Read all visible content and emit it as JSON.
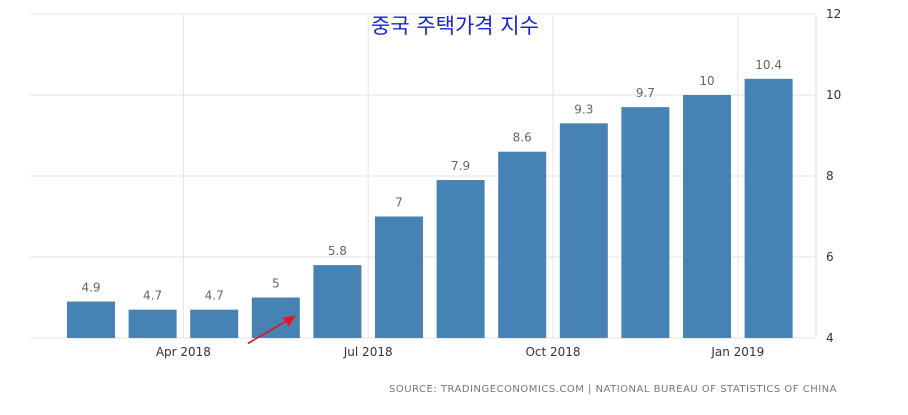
{
  "chart_data": {
    "type": "bar",
    "title": "중국 주택가격 지수",
    "source": "SOURCE: TRADINGECONOMICS.COM | NATIONAL BUREAU OF STATISTICS OF CHINA",
    "categories": [
      "2018-02",
      "2018-03",
      "2018-04",
      "2018-05",
      "2018-06",
      "2018-07",
      "2018-08",
      "2018-09",
      "2018-10",
      "2018-11",
      "2018-12",
      "2019-01"
    ],
    "values": [
      4.9,
      4.7,
      4.7,
      5,
      5.8,
      7,
      7.9,
      8.6,
      9.3,
      9.7,
      10,
      10.4
    ],
    "data_labels": [
      "4.9",
      "4.7",
      "4.7",
      "5",
      "5.8",
      "7",
      "7.9",
      "8.6",
      "9.3",
      "9.7",
      "10",
      "10.4"
    ],
    "xtick_labels": [
      {
        "category": "2018-03",
        "label": "Apr 2018"
      },
      {
        "category": "2018-06",
        "label": "Jul 2018"
      },
      {
        "category": "2018-09",
        "label": "Oct 2018"
      },
      {
        "category": "2018-12",
        "label": "Jan 2019"
      }
    ],
    "ylim": [
      4,
      12
    ],
    "yticks": [
      4,
      6,
      8,
      10,
      12
    ],
    "y_axis_side": "right",
    "grid": true,
    "bar_color": "#4682b4",
    "annotation": {
      "type": "arrow",
      "color": "#e8141e",
      "points_to": "2018-05"
    }
  }
}
